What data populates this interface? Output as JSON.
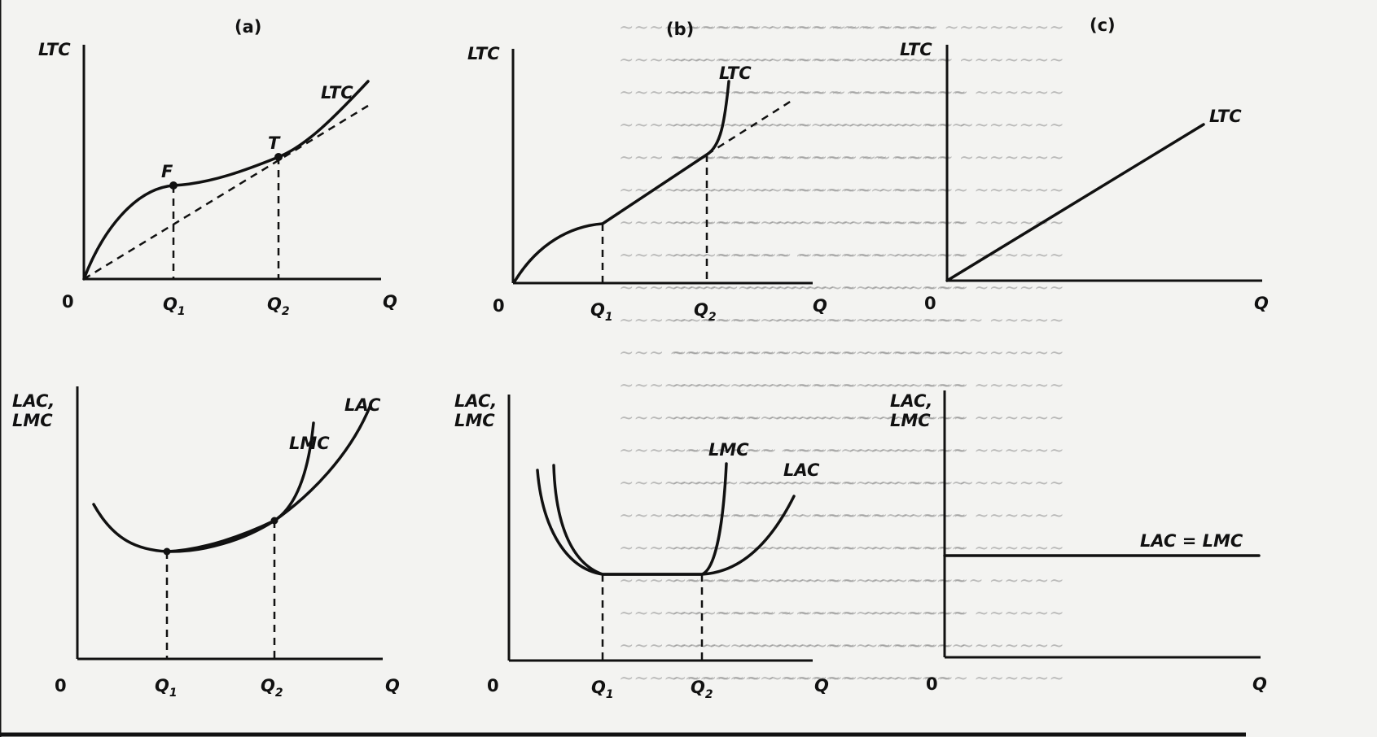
{
  "panels": {
    "a": {
      "title": "(a)",
      "top": {
        "y_axis": "LTC",
        "origin": "0",
        "x_axis": "Q",
        "curve": "LTC",
        "point_f": "F",
        "point_t": "T",
        "q1": {
          "main": "Q",
          "sub": "1"
        },
        "q2": {
          "main": "Q",
          "sub": "2"
        }
      },
      "bottom": {
        "y_axis_line1": "LAC,",
        "y_axis_line2": "LMC",
        "origin": "0",
        "x_axis": "Q",
        "curve_lmc": "LMC",
        "curve_lac": "LAC",
        "q1": {
          "main": "Q",
          "sub": "1"
        },
        "q2": {
          "main": "Q",
          "sub": "2"
        }
      }
    },
    "b": {
      "title": "(b)",
      "top": {
        "y_axis": "LTC",
        "origin": "0",
        "x_axis": "Q",
        "curve": "LTC",
        "q1": {
          "main": "Q",
          "sub": "1"
        },
        "q2": {
          "main": "Q",
          "sub": "2"
        }
      },
      "bottom": {
        "y_axis_line1": "LAC,",
        "y_axis_line2": "LMC",
        "origin": "0",
        "x_axis": "Q",
        "curve_lmc": "LMC",
        "curve_lac": "LAC",
        "q1": {
          "main": "Q",
          "sub": "1"
        },
        "q2": {
          "main": "Q",
          "sub": "2"
        }
      }
    },
    "c": {
      "title": "(c)",
      "top": {
        "y_axis": "LTC",
        "origin": "0",
        "x_axis": "Q",
        "curve": "LTC"
      },
      "bottom": {
        "y_axis_line1": "LAC,",
        "y_axis_line2": "LMC",
        "origin": "0",
        "x_axis": "Q",
        "curve": "LAC = LMC"
      }
    }
  }
}
